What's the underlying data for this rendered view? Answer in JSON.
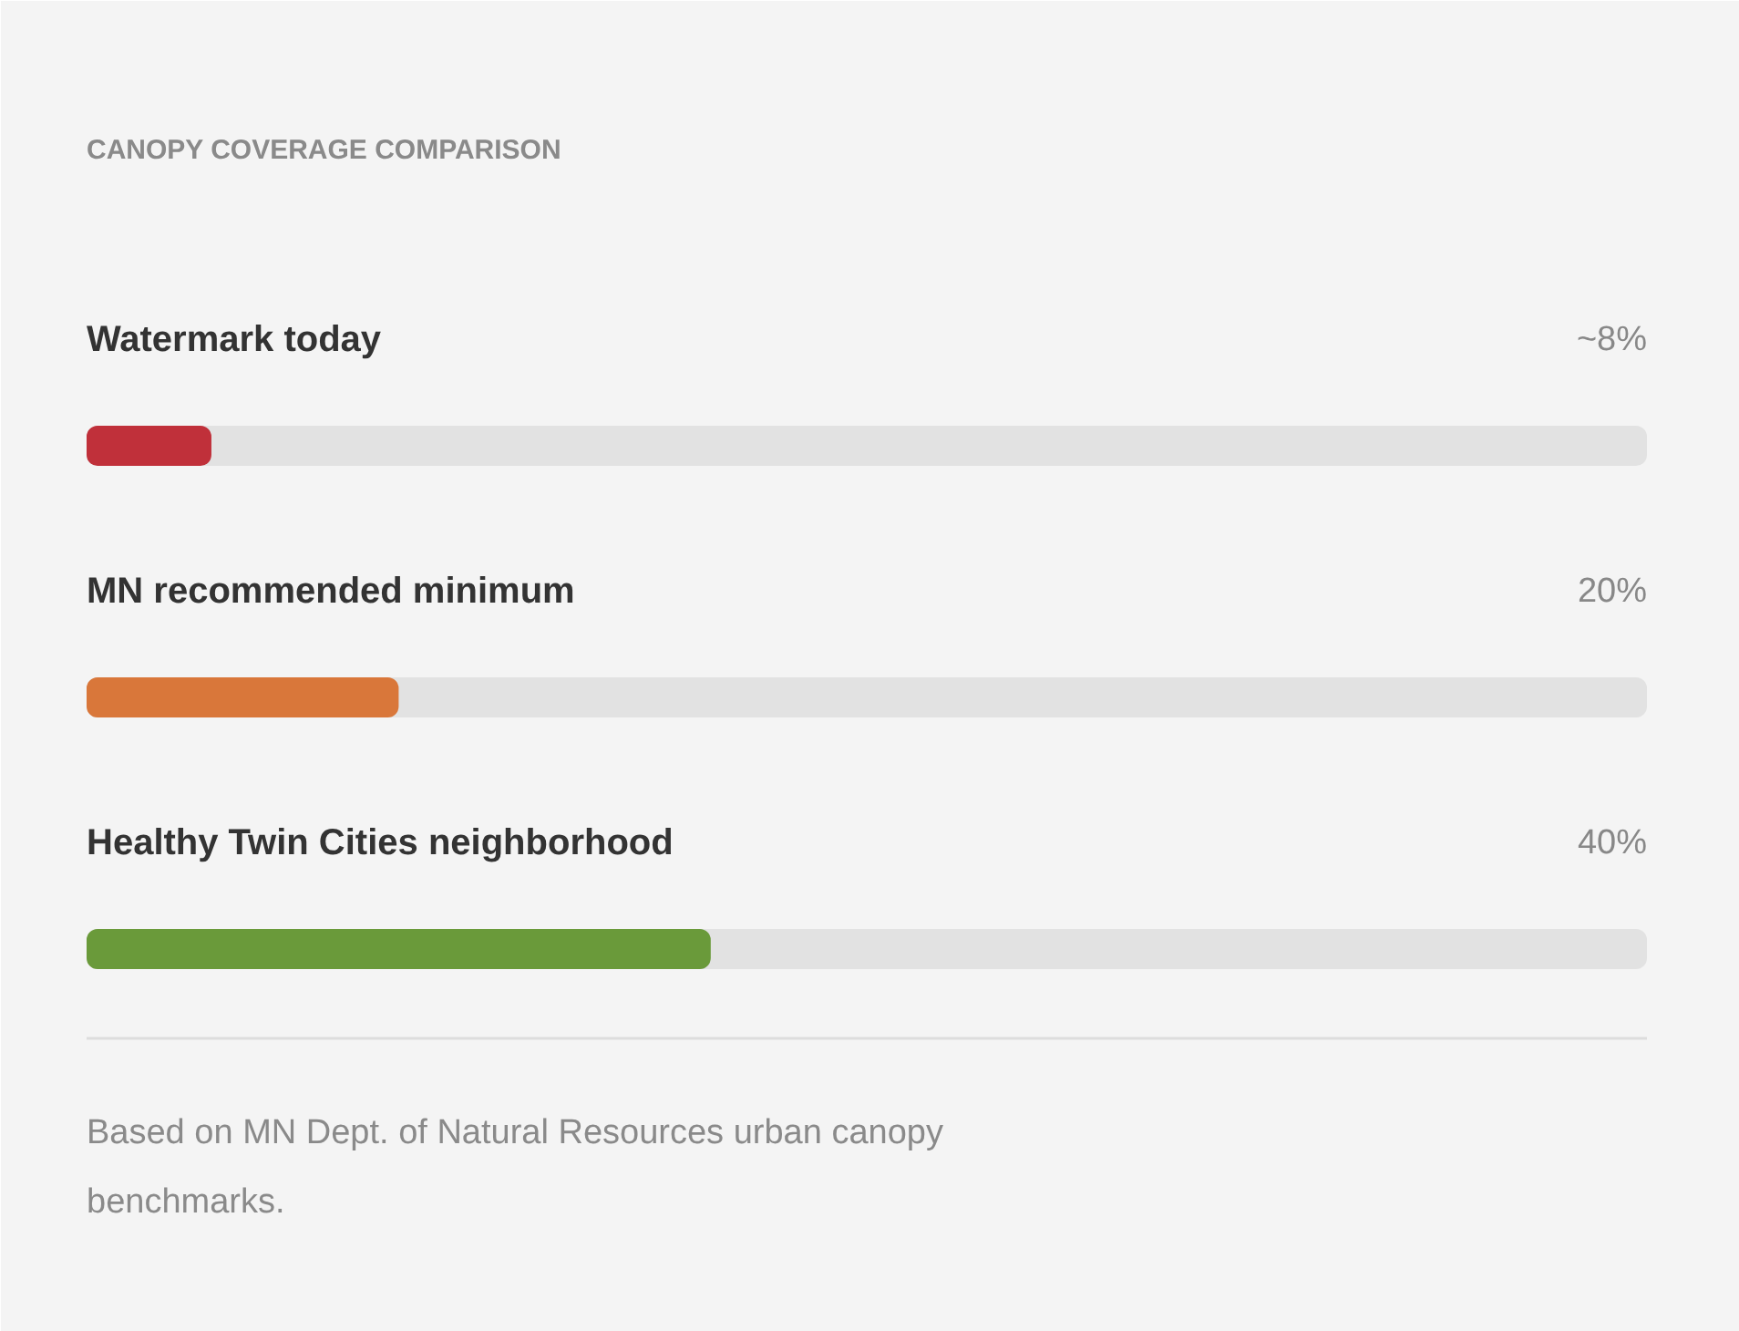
{
  "chart_data": {
    "type": "bar",
    "orientation": "horizontal",
    "title": "CANOPY COVERAGE COMPARISON",
    "categories": [
      "Watermark today",
      "MN recommended minimum",
      "Healthy Twin Cities neighborhood"
    ],
    "values": [
      8,
      20,
      40
    ],
    "colors": [
      "#c0303a",
      "#d9773a",
      "#6a9a3a"
    ],
    "value_labels": [
      "~8%",
      "20%",
      "40%"
    ],
    "xlim": [
      0,
      100
    ],
    "grid": false,
    "annotations": [
      "Based on MN Dept. of Natural Resources urban canopy benchmarks."
    ]
  }
}
